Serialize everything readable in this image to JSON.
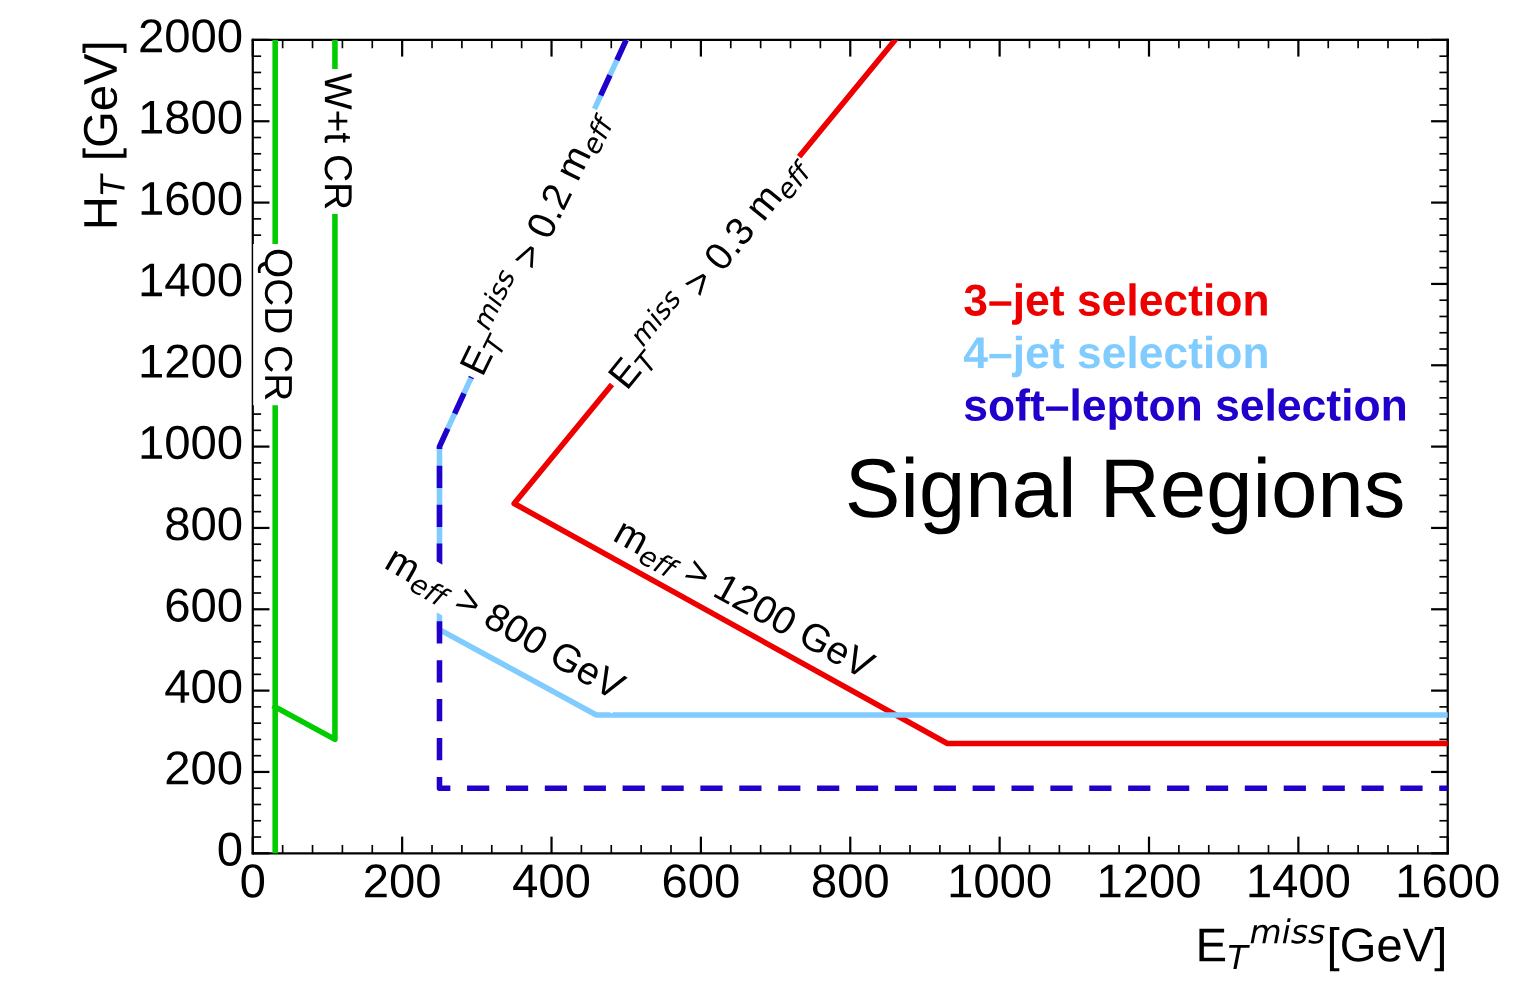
{
  "chart_data": {
    "type": "line",
    "xlabel": "E$_{T}$$^{miss}$[GeV]",
    "ylabel": "H$_{T}$ [GeV]",
    "series": [
      {
        "name": "3–jet selection",
        "color": "#ee0000",
        "x": [
          860,
          350,
          930,
          1600
        ],
        "values": [
          2000,
          860,
          270,
          270
        ],
        "line_style": "solid"
      },
      {
        "name": "4–jet selection",
        "color": "#80ccff",
        "x": [
          500,
          250,
          250,
          460,
          1600
        ],
        "values": [
          2000,
          1000,
          550,
          340,
          340
        ],
        "line_style": "solid"
      },
      {
        "name": "soft–lepton selection",
        "color": "#2200cc",
        "x": [
          500,
          250,
          250,
          1600
        ],
        "values": [
          2000,
          1000,
          160,
          160
        ],
        "line_style": "dashed"
      },
      {
        "color": "#00cc00",
        "x": [
          30,
          30
        ],
        "values": [
          0,
          2000
        ],
        "line_style": "solid"
      },
      {
        "color": "#00cc00",
        "x": [
          30,
          110,
          110
        ],
        "values": [
          360,
          280,
          2000
        ],
        "line_style": "solid"
      }
    ],
    "annotations": [
      {
        "text": "QCD CR",
        "x": 30,
        "y": 1300
      },
      {
        "text": "W+t CR",
        "x": 110,
        "y": 1750
      },
      "E$_{T}$$^{miss}$ > 0.2 m$_{eff}$",
      "E$_{T}$$^{miss}$ > 0.3 m$_{eff}$",
      "m$_{eff}$ > 800 GeV",
      "m$_{eff}$ > 1200 GeV",
      "Signal Regions"
    ],
    "xlim": [
      0,
      1600
    ],
    "ylim": [
      0,
      2000
    ],
    "xticks": [
      0,
      200,
      400,
      600,
      800,
      1000,
      1200,
      1400,
      1600
    ],
    "yticks": [
      0,
      200,
      400,
      600,
      800,
      1000,
      1200,
      1400,
      1600,
      1800,
      2000
    ],
    "grid": false,
    "legend": "right",
    "marker": "none"
  }
}
